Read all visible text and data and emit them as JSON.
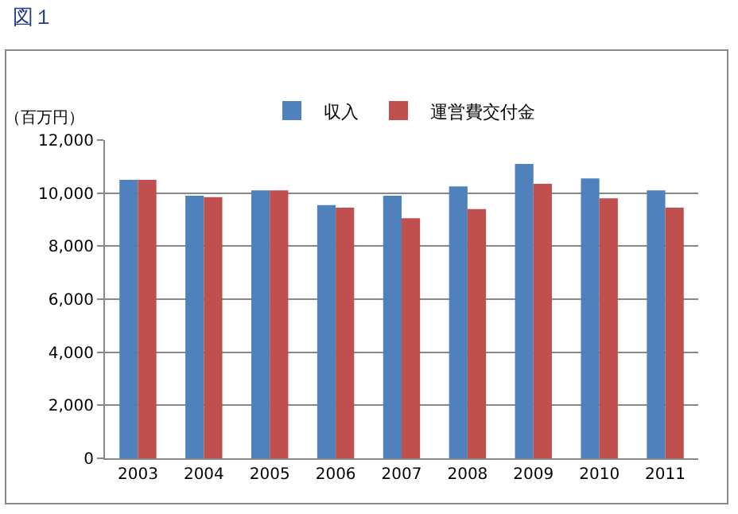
{
  "chart_data": {
    "type": "bar",
    "title": "図１",
    "ylabel": "（百万円）",
    "categories": [
      "2003",
      "2004",
      "2005",
      "2006",
      "2007",
      "2008",
      "2009",
      "2010",
      "2011"
    ],
    "series": [
      {
        "name": "収入",
        "color": "#4f81bd",
        "values": [
          10500,
          9900,
          10100,
          9550,
          9900,
          10250,
          11100,
          10550,
          10100
        ]
      },
      {
        "name": "運営費交付金",
        "color": "#c0504d",
        "values": [
          10500,
          9850,
          10100,
          9450,
          9050,
          9400,
          10350,
          9800,
          9450
        ]
      }
    ],
    "ylim": [
      0,
      12000
    ],
    "yticks": [
      {
        "value": 0,
        "label": "0"
      },
      {
        "value": 2000,
        "label": "2,000"
      },
      {
        "value": 4000,
        "label": "4,000"
      },
      {
        "value": 6000,
        "label": "6,000"
      },
      {
        "value": 8000,
        "label": "8,000"
      },
      {
        "value": 10000,
        "label": "10,000"
      },
      {
        "value": 12000,
        "label": "12,000"
      }
    ],
    "grid": "y",
    "legend": "top"
  }
}
